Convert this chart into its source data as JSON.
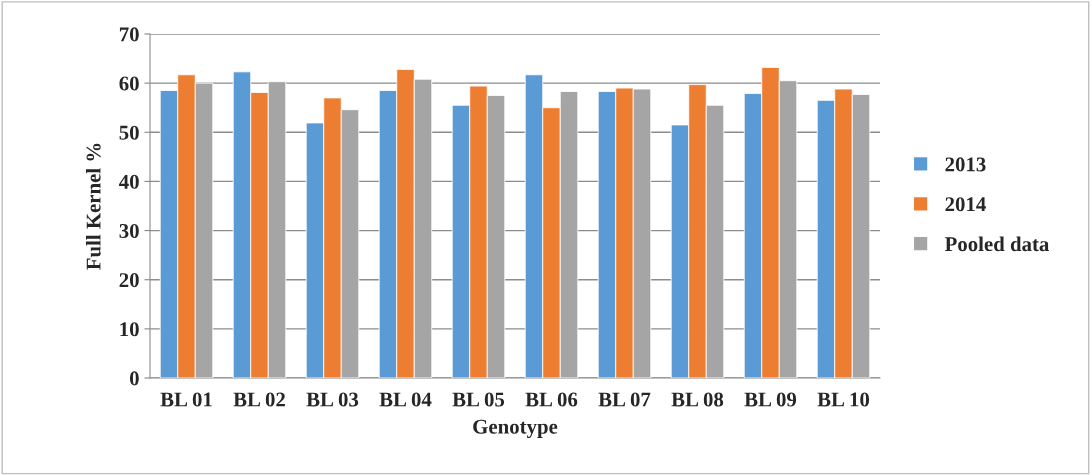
{
  "chart_data": {
    "type": "bar",
    "xlabel": "Genotype",
    "ylabel": "Full Kernel %",
    "categories": [
      "BL 01",
      "BL 02",
      "BL 03",
      "BL 04",
      "BL 05",
      "BL 06",
      "BL 07",
      "BL 08",
      "BL 09",
      "BL 10"
    ],
    "series": [
      {
        "name": "2013",
        "color": "#5b9bd5",
        "values": [
          58.5,
          62.3,
          51.9,
          58.5,
          55.5,
          61.7,
          58.3,
          51.5,
          57.9,
          56.5
        ]
      },
      {
        "name": "2014",
        "color": "#ed7d31",
        "values": [
          61.7,
          58.1,
          57.0,
          62.8,
          59.4,
          55.0,
          59.0,
          59.7,
          63.2,
          58.8
        ]
      },
      {
        "name": "Pooled data",
        "color": "#a5a5a5",
        "values": [
          60.0,
          60.3,
          54.6,
          60.8,
          57.5,
          58.3,
          58.8,
          55.5,
          60.5,
          57.7
        ]
      }
    ],
    "ylim": [
      0,
      70
    ],
    "yticks": [
      0,
      10,
      20,
      30,
      40,
      50,
      60,
      70
    ],
    "grid": "y",
    "legend": "right"
  }
}
